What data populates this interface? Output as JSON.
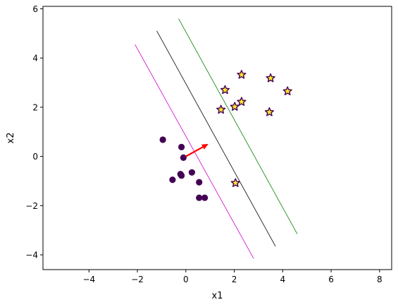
{
  "chart_data": {
    "type": "scatter",
    "title": "",
    "xlabel": "x1",
    "ylabel": "x2",
    "xlim": [
      -5.9,
      8.5
    ],
    "ylim": [
      -4.6,
      6.1
    ],
    "xticks": [
      -4,
      -2,
      0,
      2,
      4,
      6,
      8
    ],
    "yticks": [
      -4,
      -2,
      0,
      2,
      4,
      6
    ],
    "xtick_labels": [
      "−4",
      "−2",
      "0",
      "2",
      "4",
      "6",
      "8"
    ],
    "ytick_labels": [
      "−4",
      "−2",
      "0",
      "2",
      "4",
      "6"
    ],
    "grid": false,
    "class_a_points": {
      "marker": "circle",
      "color": "#440154",
      "x": [
        -0.95,
        -0.18,
        -0.1,
        0.25,
        -0.55,
        -0.22,
        -0.18,
        0.55,
        0.55,
        0.78
      ],
      "y": [
        0.68,
        0.38,
        -0.05,
        -0.65,
        -0.95,
        -0.72,
        -0.78,
        -1.05,
        -1.68,
        -1.68
      ]
    },
    "class_b_points": {
      "marker": "star",
      "face_color": "#fde725",
      "edge_color": "#440154",
      "x": [
        2.3,
        3.5,
        1.62,
        4.2,
        2.3,
        2.02,
        1.45,
        3.45,
        2.05
      ],
      "y": [
        3.32,
        3.18,
        2.7,
        2.65,
        2.22,
        2.02,
        1.9,
        1.8,
        -1.08
      ]
    },
    "lines": [
      {
        "color": "#000000",
        "x": [
          -1.2,
          3.7
        ],
        "y": [
          5.1,
          -3.65
        ]
      },
      {
        "color": "#cc00cc",
        "x": [
          -2.1,
          2.8
        ],
        "y": [
          4.55,
          -4.15
        ]
      },
      {
        "color": "#008000",
        "x": [
          -0.3,
          4.6
        ],
        "y": [
          5.6,
          -3.15
        ]
      }
    ],
    "arrow": {
      "color": "#ff0000",
      "x": [
        0,
        0.88
      ],
      "y": [
        0,
        0.48
      ]
    }
  }
}
